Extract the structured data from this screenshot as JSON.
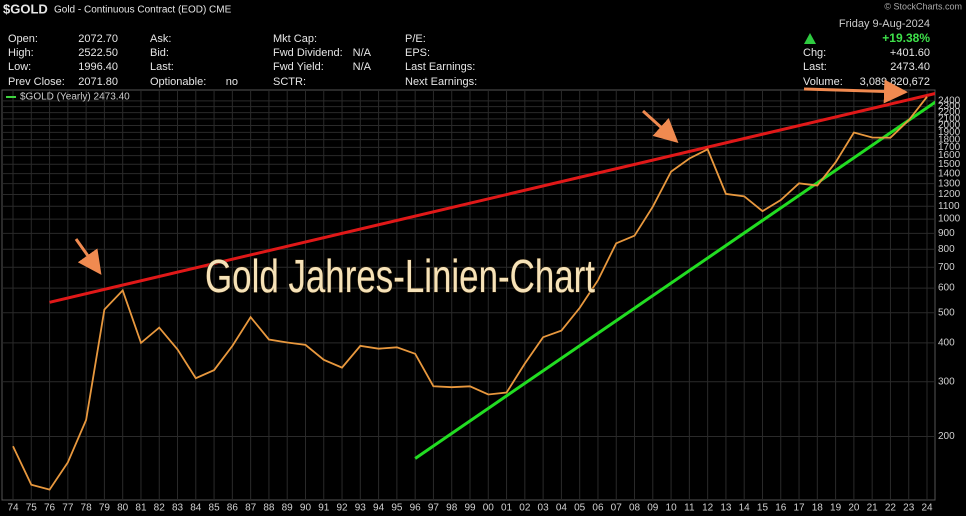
{
  "chart_data": {
    "type": "line",
    "title": "$GOLD",
    "subtitle": "Gold - Continuous Contract (EOD) CME",
    "annotation": "Gold Jahres-Linien-Chart",
    "watermark": "© StockCharts.com",
    "categories": [
      "74",
      "75",
      "76",
      "77",
      "78",
      "79",
      "80",
      "81",
      "82",
      "83",
      "84",
      "85",
      "86",
      "87",
      "88",
      "89",
      "90",
      "91",
      "92",
      "93",
      "94",
      "95",
      "96",
      "97",
      "98",
      "99",
      "00",
      "01",
      "02",
      "03",
      "04",
      "05",
      "06",
      "07",
      "08",
      "09",
      "10",
      "11",
      "12",
      "13",
      "14",
      "15",
      "16",
      "17",
      "18",
      "19",
      "20",
      "21",
      "22",
      "23",
      "24"
    ],
    "series": [
      {
        "name": "$GOLD (Yearly) 2473.40",
        "color": "#e8983e",
        "values": [
          186,
          140,
          135,
          165,
          226,
          512,
          590,
          400,
          448,
          381,
          308,
          327,
          391,
          484,
          410,
          401,
          394,
          353,
          333,
          391,
          383,
          387,
          369,
          290,
          288,
          290,
          273,
          277,
          343,
          417,
          438,
          518,
          636,
          836,
          884,
          1096,
          1421,
          1566,
          1676,
          1205,
          1184,
          1061,
          1152,
          1303,
          1282,
          1523,
          1898,
          1829,
          1826,
          2078,
          2473
        ]
      }
    ],
    "log_scale": true,
    "grid": true,
    "ylim": [
      125,
      2600
    ],
    "yticks": [
      200,
      300,
      400,
      500,
      600,
      700,
      800,
      900,
      1000,
      1100,
      1200,
      1300,
      1400,
      1500,
      1600,
      1700,
      1800,
      1900,
      2000,
      2100,
      2200,
      2300,
      2400
    ],
    "trendlines": [
      {
        "color": "#e01818",
        "x": [
          1976,
          2025.5
        ],
        "y": [
          540,
          2620
        ]
      },
      {
        "color": "#22dd22",
        "x": [
          1996,
          2025.5
        ],
        "y": [
          170,
          2620
        ]
      }
    ]
  },
  "quote": {
    "date": "Friday  9-Aug-2024",
    "change_pct": "+19.38%",
    "columns": [
      [
        {
          "label": "Open:",
          "value": "2072.70"
        },
        {
          "label": "High:",
          "value": "2522.50"
        },
        {
          "label": "Low:",
          "value": "1996.40"
        },
        {
          "label": "Prev Close:",
          "value": "2071.80"
        }
      ],
      [
        {
          "label": "Ask:"
        },
        {
          "label": "Bid:"
        },
        {
          "label": "Last:"
        },
        {
          "label": "Optionable:",
          "value": "no"
        }
      ],
      [
        {
          "label": "Mkt Cap:"
        },
        {
          "label": "Fwd Dividend:",
          "value": "N/A"
        },
        {
          "label": "Fwd Yield:",
          "value": "N/A"
        },
        {
          "label": "SCTR:"
        }
      ],
      [
        {
          "label": "P/E:"
        },
        {
          "label": "EPS:"
        },
        {
          "label": "Last Earnings:"
        },
        {
          "label": "Next Earnings:"
        }
      ],
      [
        {
          "label": "Chg:",
          "value": "+401.60"
        },
        {
          "label": "Last:",
          "value": "2473.40"
        },
        {
          "label": "Volume:",
          "value": "3,089,820,672"
        }
      ]
    ]
  }
}
